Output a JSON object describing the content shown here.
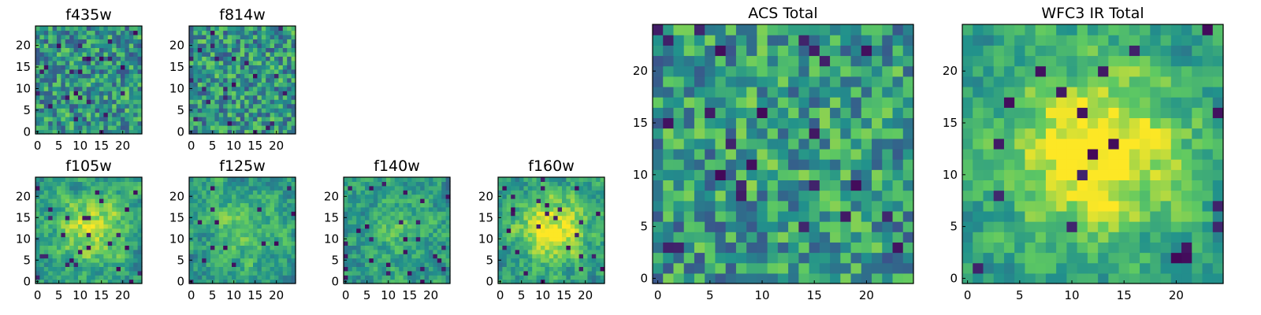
{
  "chart_data": [
    {
      "type": "heatmap",
      "title": "f435w",
      "xticks": [
        0,
        5,
        10,
        15,
        20
      ],
      "yticks": [
        0,
        5,
        10,
        15,
        20
      ],
      "grid_size": 25,
      "noise": "high",
      "blob_strength": 0,
      "seed": 11
    },
    {
      "type": "heatmap",
      "title": "f814w",
      "xticks": [
        0,
        5,
        10,
        15,
        20
      ],
      "yticks": [
        0,
        5,
        10,
        15,
        20
      ],
      "grid_size": 25,
      "noise": "high",
      "blob_strength": 0,
      "seed": 23
    },
    {
      "type": "heatmap",
      "title": "f105w",
      "xticks": [
        0,
        5,
        10,
        15,
        20
      ],
      "yticks": [
        0,
        5,
        10,
        15,
        20
      ],
      "grid_size": 25,
      "noise": "smooth",
      "blob_strength": 0.35,
      "seed": 37
    },
    {
      "type": "heatmap",
      "title": "f125w",
      "xticks": [
        0,
        5,
        10,
        15,
        20
      ],
      "yticks": [
        0,
        5,
        10,
        15,
        20
      ],
      "grid_size": 25,
      "noise": "smooth",
      "blob_strength": 0.2,
      "seed": 41
    },
    {
      "type": "heatmap",
      "title": "f140w",
      "xticks": [
        0,
        5,
        10,
        15,
        20
      ],
      "yticks": [
        0,
        5,
        10,
        15,
        20
      ],
      "grid_size": 25,
      "noise": "smooth",
      "blob_strength": 0.15,
      "seed": 53
    },
    {
      "type": "heatmap",
      "title": "f160w",
      "xticks": [
        0,
        5,
        10,
        15,
        20
      ],
      "yticks": [
        0,
        5,
        10,
        15,
        20
      ],
      "grid_size": 25,
      "noise": "smooth",
      "blob_strength": 0.45,
      "seed": 67
    },
    {
      "type": "heatmap",
      "title": "ACS Total",
      "xticks": [
        0,
        5,
        10,
        15,
        20
      ],
      "yticks": [
        0,
        5,
        10,
        15,
        20
      ],
      "grid_size": 25,
      "noise": "high",
      "blob_strength": 0.05,
      "seed": 79
    },
    {
      "type": "heatmap",
      "title": "WFC3 IR Total",
      "xticks": [
        0,
        5,
        10,
        15,
        20
      ],
      "yticks": [
        0,
        5,
        10,
        15,
        20
      ],
      "grid_size": 25,
      "noise": "smooth",
      "blob_strength": 0.55,
      "seed": 97
    }
  ],
  "colormap": [
    "#440154",
    "#3b528b",
    "#21918c",
    "#5ec962",
    "#fde725"
  ]
}
